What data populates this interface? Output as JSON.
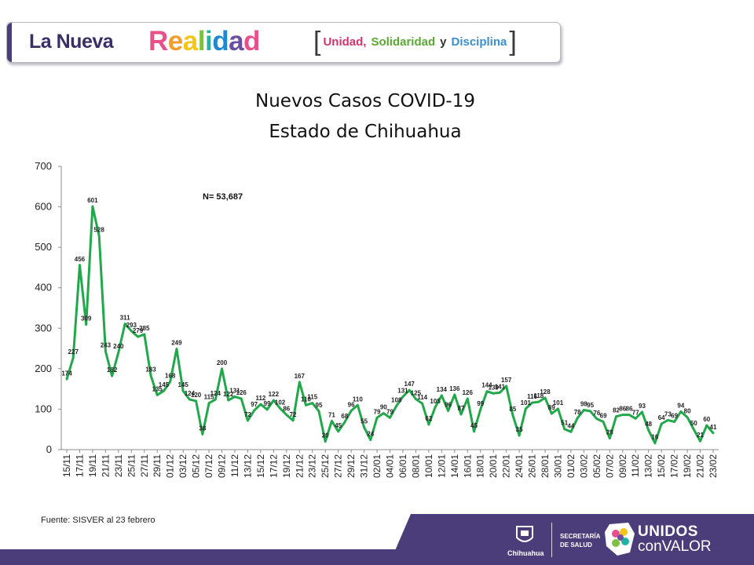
{
  "header": {
    "brand_prefix": "La Nueva",
    "brand_main_letters": [
      "R",
      "e",
      "a",
      "l",
      "i",
      "d",
      "a",
      "d"
    ],
    "brand_colors": [
      "#e94f8a",
      "#f39c2a",
      "#f5c518",
      "#7cc142",
      "#23b3a4",
      "#1e88d0",
      "#6b4fa0",
      "#e94f8a"
    ],
    "motto": [
      {
        "text": "Unidad,",
        "color": "#d6336c"
      },
      {
        "text": "Solidaridad",
        "color": "#5aa832"
      },
      {
        "text": "y",
        "color": "#333333"
      },
      {
        "text": "Disciplina",
        "color": "#3a8fd1"
      }
    ]
  },
  "chart_title": {
    "line1": "Nuevos Casos COVID-19",
    "line2": "Estado de Chihuahua"
  },
  "chart_data": {
    "type": "line",
    "title": "Nuevos Casos COVID-19 Estado de Chihuahua",
    "xlabel": "",
    "ylabel": "",
    "ylim": [
      0,
      700
    ],
    "yticks": [
      0,
      100,
      200,
      300,
      400,
      500,
      600,
      700
    ],
    "annotation": "N= 53,687",
    "line_color": "#21a84a",
    "x_labels": [
      "15/11",
      "17/11",
      "19/11",
      "21/11",
      "23/11",
      "25/11",
      "27/11",
      "29/11",
      "01/12",
      "03/12",
      "05/12",
      "07/12",
      "09/12",
      "11/12",
      "13/12",
      "15/12",
      "17/12",
      "19/12",
      "21/12",
      "23/12",
      "25/12",
      "27/12",
      "29/12",
      "31/12",
      "02/01",
      "04/01",
      "06/01",
      "08/01",
      "10/01",
      "12/01",
      "14/01",
      "16/01",
      "18/01",
      "20/01",
      "22/01",
      "24/01",
      "26/01",
      "28/01",
      "30/01",
      "01/02",
      "03/02",
      "05/02",
      "07/02",
      "09/02",
      "11/02",
      "13/02",
      "15/02",
      "17/02",
      "19/02",
      "21/02",
      "23/02"
    ],
    "values": [
      174,
      227,
      456,
      309,
      601,
      528,
      243,
      182,
      240,
      311,
      293,
      279,
      285,
      183,
      135,
      145,
      168,
      249,
      145,
      124,
      120,
      38,
      115,
      124,
      200,
      122,
      131,
      126,
      72,
      97,
      112,
      99,
      122,
      102,
      86,
      72,
      167,
      110,
      115,
      95,
      20,
      71,
      45,
      68,
      96,
      110,
      55,
      24,
      79,
      90,
      79,
      108,
      131,
      147,
      125,
      114,
      62,
      105,
      134,
      96,
      136,
      87,
      126,
      45,
      99,
      144,
      139,
      141,
      157,
      85,
      35,
      101,
      116,
      118,
      128,
      89,
      101,
      51,
      44,
      78,
      98,
      95,
      76,
      69,
      28,
      82,
      86,
      86,
      77,
      93,
      48,
      16,
      64,
      73,
      69,
      94,
      80,
      50,
      21,
      60,
      41
    ]
  },
  "source": "Fuente:  SISVER al 23 febrero",
  "footer": {
    "seal_label": "Chihuahua",
    "department_line1": "SECRETARÍA",
    "department_line2": "DE SALUD",
    "campaign_line1": "UNIDOS",
    "campaign_line2": "conVALOR"
  }
}
